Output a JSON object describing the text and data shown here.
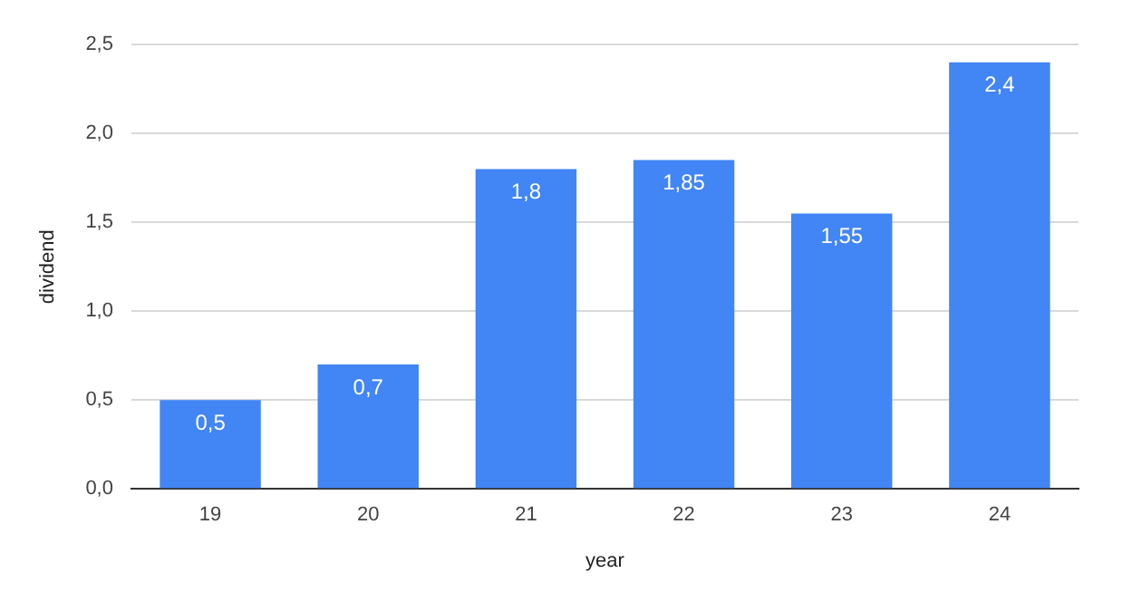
{
  "chart_data": {
    "type": "bar",
    "xlabel": "year",
    "ylabel": "dividend",
    "categories": [
      "19",
      "20",
      "21",
      "22",
      "23",
      "24"
    ],
    "values": [
      0.5,
      0.7,
      1.8,
      1.85,
      1.55,
      2.4
    ],
    "value_labels": [
      "0,5",
      "0,7",
      "1,8",
      "1,85",
      "1,55",
      "2,4"
    ],
    "color": "#4285f4",
    "ylim": [
      0,
      2.5
    ],
    "yticks": [
      {
        "value": 0,
        "label": "0,0"
      },
      {
        "value": 0.5,
        "label": "0,5"
      },
      {
        "value": 1,
        "label": "1,0"
      },
      {
        "value": 1.5,
        "label": "1,5"
      },
      {
        "value": 2,
        "label": "2,0"
      },
      {
        "value": 2.5,
        "label": "2,5"
      }
    ],
    "grid": "y",
    "legend": false
  }
}
